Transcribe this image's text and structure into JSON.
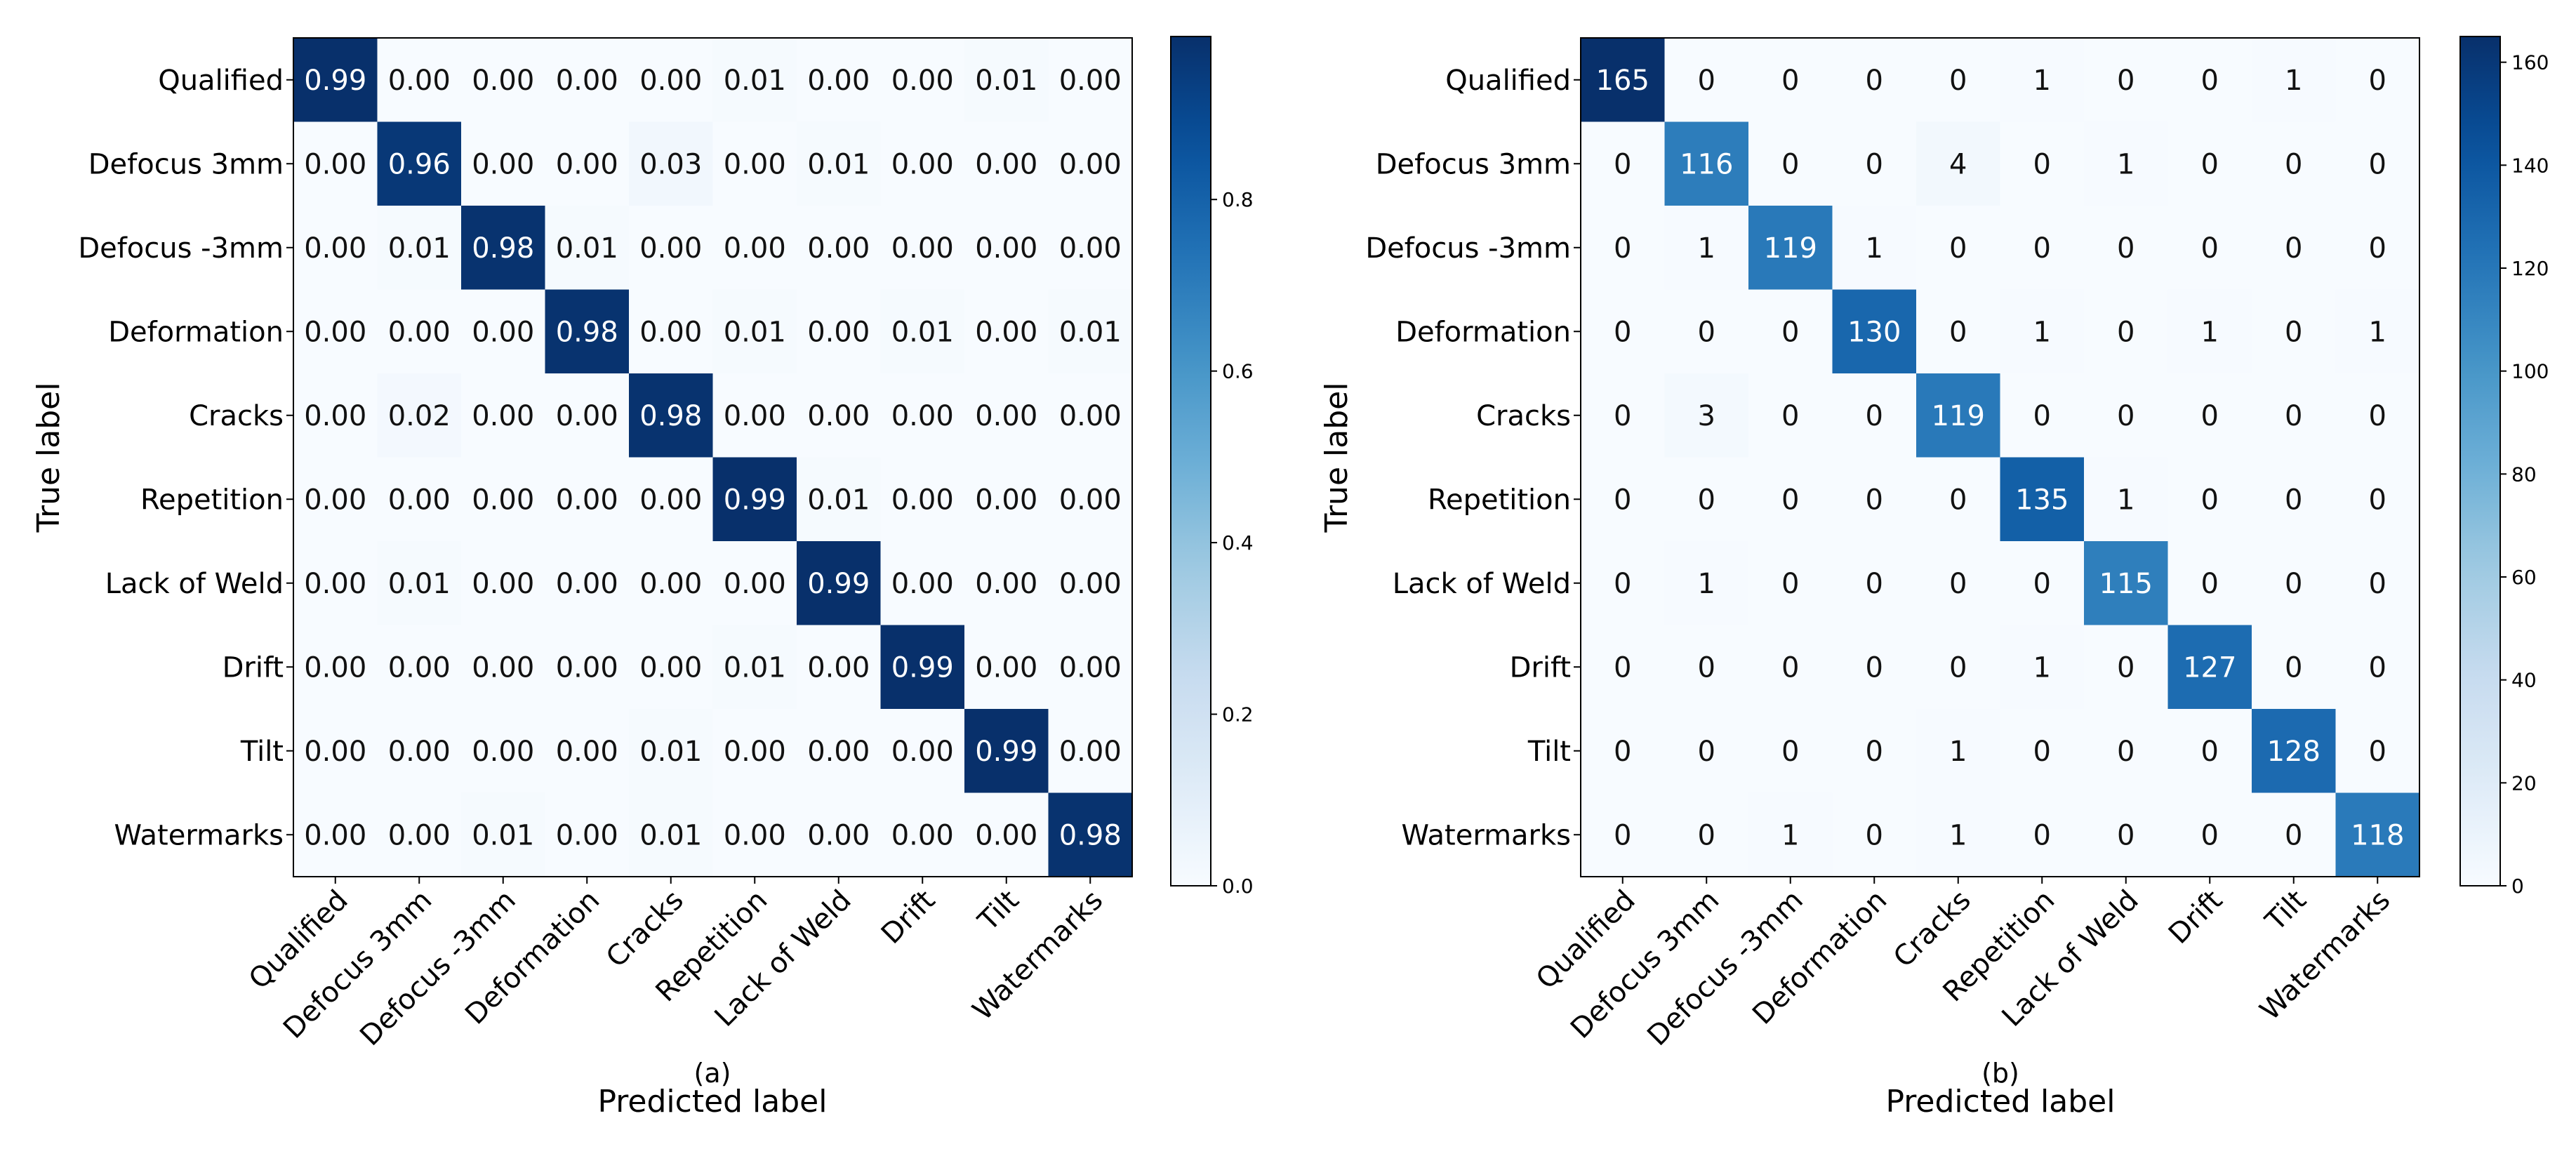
{
  "figure": {
    "caption_a": "(a)",
    "caption_b": "(b)"
  },
  "chart_data": [
    {
      "type": "heatmap",
      "id": "a",
      "title": "",
      "xlabel": "Predicted label",
      "ylabel": "True label",
      "categories": [
        "Qualified",
        "Defocus 3mm",
        "Defocus -3mm",
        "Deformation",
        "Cracks",
        "Repetition",
        "Lack of Weld",
        "Drift",
        "Tilt",
        "Watermarks"
      ],
      "value_format": "fixed2",
      "values": [
        [
          0.99,
          0.0,
          0.0,
          0.0,
          0.0,
          0.01,
          0.0,
          0.0,
          0.01,
          0.0
        ],
        [
          0.0,
          0.96,
          0.0,
          0.0,
          0.03,
          0.0,
          0.01,
          0.0,
          0.0,
          0.0
        ],
        [
          0.0,
          0.01,
          0.98,
          0.01,
          0.0,
          0.0,
          0.0,
          0.0,
          0.0,
          0.0
        ],
        [
          0.0,
          0.0,
          0.0,
          0.98,
          0.0,
          0.01,
          0.0,
          0.01,
          0.0,
          0.01
        ],
        [
          0.0,
          0.02,
          0.0,
          0.0,
          0.98,
          0.0,
          0.0,
          0.0,
          0.0,
          0.0
        ],
        [
          0.0,
          0.0,
          0.0,
          0.0,
          0.0,
          0.99,
          0.01,
          0.0,
          0.0,
          0.0
        ],
        [
          0.0,
          0.01,
          0.0,
          0.0,
          0.0,
          0.0,
          0.99,
          0.0,
          0.0,
          0.0
        ],
        [
          0.0,
          0.0,
          0.0,
          0.0,
          0.0,
          0.01,
          0.0,
          0.99,
          0.0,
          0.0
        ],
        [
          0.0,
          0.0,
          0.0,
          0.0,
          0.01,
          0.0,
          0.0,
          0.0,
          0.99,
          0.0
        ],
        [
          0.0,
          0.0,
          0.01,
          0.0,
          0.01,
          0.0,
          0.0,
          0.0,
          0.0,
          0.98
        ]
      ],
      "colorbar": {
        "range": [
          0,
          0.99
        ],
        "ticks": [
          0.0,
          0.2,
          0.4,
          0.6,
          0.8
        ],
        "tick_labels": [
          "0.0",
          "0.2",
          "0.4",
          "0.6",
          "0.8"
        ]
      },
      "colormap": "Blues"
    },
    {
      "type": "heatmap",
      "id": "b",
      "title": "",
      "xlabel": "Predicted label",
      "ylabel": "True label",
      "categories": [
        "Qualified",
        "Defocus 3mm",
        "Defocus -3mm",
        "Deformation",
        "Cracks",
        "Repetition",
        "Lack of Weld",
        "Drift",
        "Tilt",
        "Watermarks"
      ],
      "value_format": "int",
      "values": [
        [
          165,
          0,
          0,
          0,
          0,
          1,
          0,
          0,
          1,
          0
        ],
        [
          0,
          116,
          0,
          0,
          4,
          0,
          1,
          0,
          0,
          0
        ],
        [
          0,
          1,
          119,
          1,
          0,
          0,
          0,
          0,
          0,
          0
        ],
        [
          0,
          0,
          0,
          130,
          0,
          1,
          0,
          1,
          0,
          1
        ],
        [
          0,
          3,
          0,
          0,
          119,
          0,
          0,
          0,
          0,
          0
        ],
        [
          0,
          0,
          0,
          0,
          0,
          135,
          1,
          0,
          0,
          0
        ],
        [
          0,
          1,
          0,
          0,
          0,
          0,
          115,
          0,
          0,
          0
        ],
        [
          0,
          0,
          0,
          0,
          0,
          1,
          0,
          127,
          0,
          0
        ],
        [
          0,
          0,
          0,
          0,
          1,
          0,
          0,
          0,
          128,
          0
        ],
        [
          0,
          0,
          1,
          0,
          1,
          0,
          0,
          0,
          0,
          118
        ]
      ],
      "colorbar": {
        "range": [
          0,
          165
        ],
        "ticks": [
          0,
          20,
          40,
          60,
          80,
          100,
          120,
          140,
          160
        ],
        "tick_labels": [
          "0",
          "20",
          "40",
          "60",
          "80",
          "100",
          "120",
          "140",
          "160"
        ]
      },
      "colormap": "Blues"
    }
  ]
}
